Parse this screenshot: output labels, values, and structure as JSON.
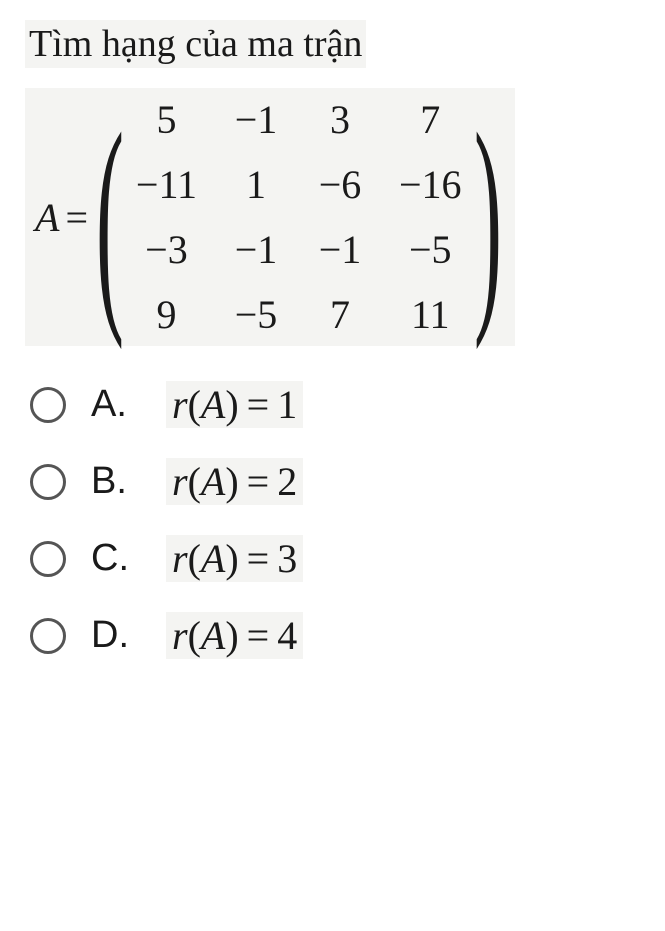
{
  "question": {
    "title": "Tìm hạng của ma trận",
    "matrix_label": "A",
    "eq": "=",
    "matrix": {
      "rows": 4,
      "cols": 4,
      "cells": [
        [
          "5",
          "−1",
          "3",
          "7"
        ],
        [
          "−11",
          "1",
          "−6",
          "−16"
        ],
        [
          "−3",
          "−1",
          "−1",
          "−5"
        ],
        [
          "9",
          "−5",
          "7",
          "11"
        ]
      ]
    }
  },
  "options": [
    {
      "letter": "A.",
      "fn": "r",
      "arg": "A",
      "eq": "=",
      "val": "1"
    },
    {
      "letter": "B.",
      "fn": "r",
      "arg": "A",
      "eq": "=",
      "val": "2"
    },
    {
      "letter": "C.",
      "fn": "r",
      "arg": "A",
      "eq": "=",
      "val": "3"
    },
    {
      "letter": "D.",
      "fn": "r",
      "arg": "A",
      "eq": "=",
      "val": "4"
    }
  ],
  "style": {
    "background": "#ffffff",
    "snippet_bg": "#f4f4f2",
    "text_color": "#1a1a1a",
    "radio_border": "#555555",
    "title_fontsize": 38,
    "matrix_fontsize": 40,
    "option_fontsize": 40
  }
}
